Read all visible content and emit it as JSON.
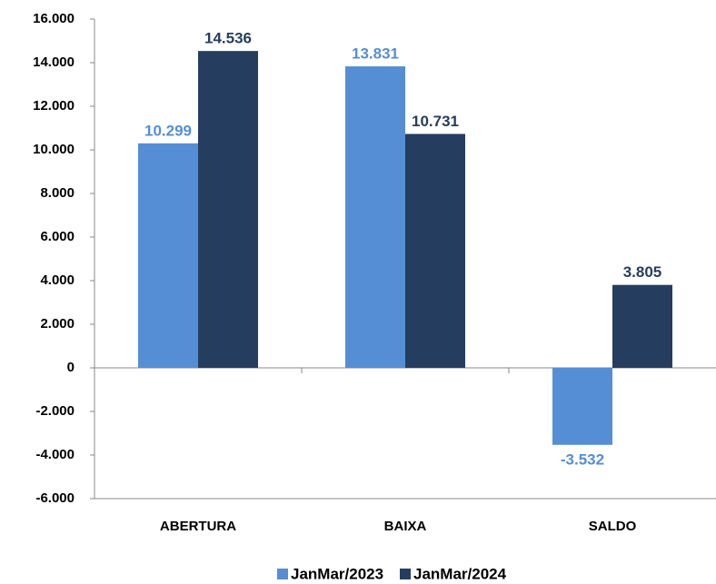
{
  "chart_data": {
    "type": "bar",
    "categories": [
      "ABERTURA",
      "BAIXA",
      "SALDO"
    ],
    "series": [
      {
        "name": "JanMar/2023",
        "color": "#558ed5",
        "values": [
          10299,
          13831,
          -3532
        ],
        "value_labels": [
          "10.299",
          "13.831",
          "-3.532"
        ]
      },
      {
        "name": "JanMar/2024",
        "color": "#253e5f",
        "values": [
          14536,
          10731,
          3805
        ],
        "value_labels": [
          "14.536",
          "10.731",
          "3.805"
        ]
      }
    ],
    "ylim": [
      -6000,
      16000
    ],
    "yticks": [
      {
        "value": -6000,
        "label": "-6.000"
      },
      {
        "value": -4000,
        "label": "-4.000"
      },
      {
        "value": -2000,
        "label": "-2.000"
      },
      0,
      {
        "value": 2000,
        "label": "2.000"
      },
      {
        "value": 4000,
        "label": "4.000"
      },
      {
        "value": 6000,
        "label": "6.000"
      },
      {
        "value": 8000,
        "label": "8.000"
      },
      {
        "value": 10000,
        "label": "10.000"
      },
      {
        "value": 12000,
        "label": "12.000"
      },
      {
        "value": 14000,
        "label": "14.000"
      },
      {
        "value": 16000,
        "label": "16.000"
      }
    ],
    "legend": "bottom"
  }
}
